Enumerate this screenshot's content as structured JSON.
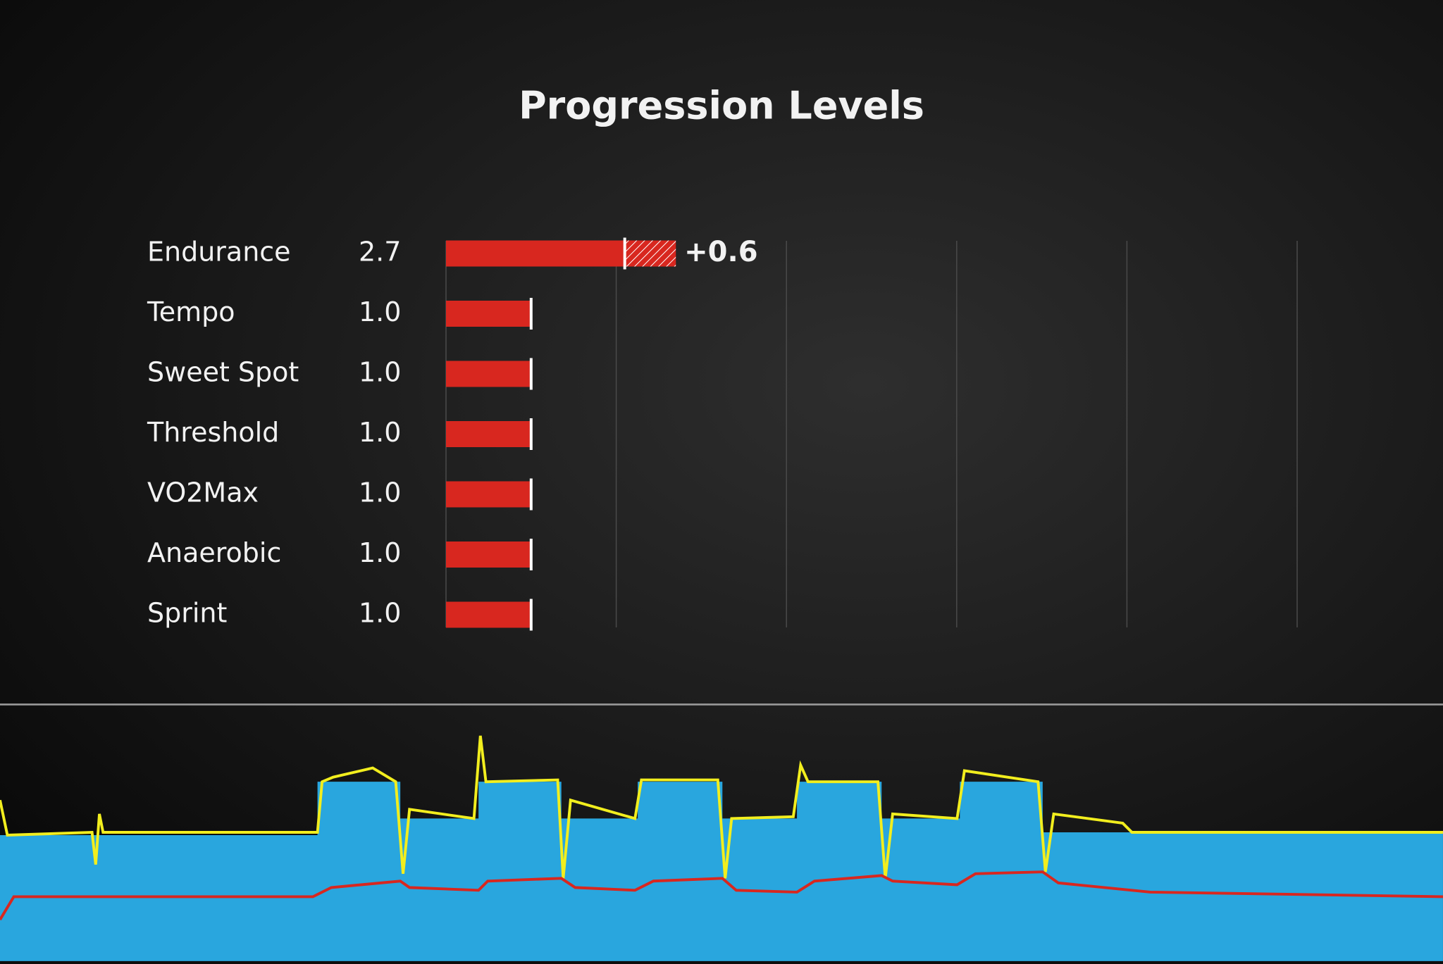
{
  "chart_data": {
    "type": "bar",
    "orientation": "horizontal",
    "title": "Progression Levels",
    "categories": [
      "Endurance",
      "Tempo",
      "Sweet Spot",
      "Threshold",
      "VO2Max",
      "Anaerobic",
      "Sprint"
    ],
    "values": [
      2.7,
      1.0,
      1.0,
      1.0,
      1.0,
      1.0,
      1.0
    ],
    "value_labels": [
      "2.7",
      "1.0",
      "1.0",
      "1.0",
      "1.0",
      "1.0",
      "1.0"
    ],
    "change": [
      0.6,
      null,
      null,
      null,
      null,
      null,
      null
    ],
    "change_labels": [
      "+0.6",
      null,
      null,
      null,
      null,
      null,
      null
    ],
    "color": "#d8271f",
    "xlim": [
      0,
      10
    ],
    "xticks": [
      0,
      2,
      4,
      6,
      8,
      10
    ],
    "grid": true
  }
}
